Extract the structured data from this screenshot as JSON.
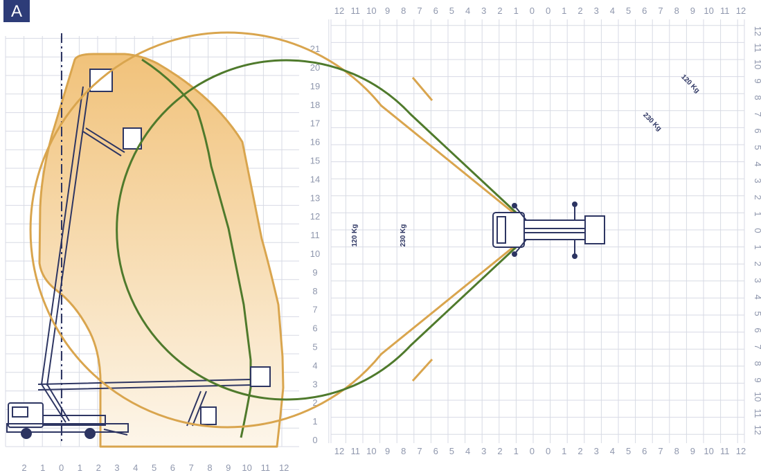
{
  "badge": {
    "label": "A",
    "color": "#2d3c78"
  },
  "colors": {
    "envelope_fill": "#f3c98a",
    "orange_line": "#d9a54e",
    "green_line": "#4f7a2c",
    "grid": "#d7dae4",
    "machine": "#2d3562"
  },
  "side_view": {
    "height_ticks": [
      "0",
      "1",
      "2",
      "3",
      "4",
      "5",
      "6",
      "7",
      "8",
      "9",
      "10",
      "11",
      "12",
      "13",
      "14",
      "15",
      "16",
      "17",
      "18",
      "19",
      "20",
      "21"
    ],
    "reach_ticks": [
      "2",
      "1",
      "0",
      "1",
      "2",
      "3",
      "4",
      "5",
      "6",
      "7",
      "8",
      "9",
      "10",
      "11",
      "12"
    ]
  },
  "top_view": {
    "top_ticks": [
      "12",
      "11",
      "10",
      "9",
      "8",
      "7",
      "6",
      "5",
      "4",
      "3",
      "2",
      "1",
      "0",
      "0",
      "1",
      "2",
      "3",
      "4",
      "5",
      "6",
      "7",
      "8",
      "9",
      "10",
      "11",
      "12"
    ],
    "bottom_ticks": [
      "12",
      "11",
      "10",
      "9",
      "8",
      "7",
      "6",
      "5",
      "4",
      "3",
      "2",
      "1",
      "0",
      "0",
      "1",
      "2",
      "3",
      "4",
      "5",
      "6",
      "7",
      "8",
      "9",
      "10",
      "11",
      "12"
    ],
    "right_ticks": [
      "12",
      "11",
      "10",
      "9",
      "8",
      "7",
      "6",
      "5",
      "4",
      "3",
      "2",
      "1",
      "0",
      "1",
      "2",
      "3",
      "4",
      "5",
      "6",
      "7",
      "8",
      "9",
      "10",
      "11",
      "12"
    ],
    "loads": [
      {
        "name": "orange",
        "label_1": "120 Kg",
        "label_2": "120 Kg",
        "color": "#d9a54e"
      },
      {
        "name": "green",
        "label_1": "230 Kg",
        "label_2": "230 Kg",
        "color": "#4f7a2c"
      }
    ]
  }
}
